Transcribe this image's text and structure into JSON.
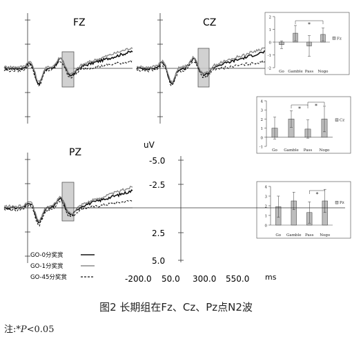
{
  "figure": {
    "caption": "图2   长期组在Fz、Cz、Pz点N2波",
    "note_prefix": "注:*",
    "note_p": "P",
    "note_suffix": "<0.05"
  },
  "chart_data": [
    {
      "type": "line",
      "title": "FZ",
      "x": [
        -200,
        550
      ],
      "series": [
        {
          "name": "GO-0分奖赏",
          "style": "solid-black"
        },
        {
          "name": "GO-1分奖赏",
          "style": "solid-gray"
        },
        {
          "name": "GO-45分奖赏",
          "style": "dashed"
        }
      ],
      "highlight_window": true
    },
    {
      "type": "line",
      "title": "CZ",
      "x": [
        -200,
        550
      ],
      "series": [
        {
          "name": "GO-0分奖赏",
          "style": "solid-black"
        },
        {
          "name": "GO-1分奖赏",
          "style": "solid-gray"
        },
        {
          "name": "GO-45分奖赏",
          "style": "dashed"
        }
      ],
      "highlight_window": true
    },
    {
      "type": "line",
      "title": "PZ",
      "x_label": "ms",
      "y_label": "uV",
      "x_ticks": [
        "-200.0",
        "50.0",
        "300.0",
        "550.0"
      ],
      "y_ticks": [
        "-5.0",
        "-2.5",
        "2.5",
        "5.0"
      ],
      "y_reversed": true,
      "series": [
        {
          "name": "GO-0分奖赏",
          "style": "solid-black"
        },
        {
          "name": "GO-1分奖赏",
          "style": "solid-gray"
        },
        {
          "name": "GO-45分奖赏",
          "style": "dashed"
        }
      ],
      "highlight_window": true
    },
    {
      "type": "bar",
      "legend": "Fz",
      "categories": [
        "Go",
        "Gamble",
        "Pass",
        "Nogo"
      ],
      "values": [
        -0.2,
        0.7,
        -0.3,
        0.6
      ],
      "errors": [
        0.3,
        0.6,
        0.8,
        0.5
      ],
      "ylim": [
        -2,
        2
      ],
      "y_ticks": [
        "2",
        "1",
        "0",
        "-1",
        "-2"
      ],
      "annotations": [
        {
          "text": "*",
          "between": [
            "Gamble",
            "Nogo"
          ]
        }
      ]
    },
    {
      "type": "bar",
      "legend": "Cz",
      "categories": [
        "Go",
        "Gamble",
        "Pass",
        "Nogo"
      ],
      "values": [
        1.0,
        2.0,
        0.9,
        2.0
      ],
      "errors": [
        1.2,
        0.9,
        1.0,
        1.4
      ],
      "ylim": [
        -1,
        4
      ],
      "y_ticks": [
        "4",
        "3",
        "2",
        "1",
        "0",
        "-1"
      ],
      "annotations": [
        {
          "text": "*",
          "between": [
            "Gamble",
            "Pass"
          ]
        },
        {
          "text": "*",
          "between": [
            "Pass",
            "Nogo"
          ]
        }
      ]
    },
    {
      "type": "bar",
      "legend": "Pz",
      "categories": [
        "Go",
        "Gamble",
        "Pass",
        "Nogo"
      ],
      "values": [
        1.9,
        2.5,
        1.3,
        2.5
      ],
      "errors": [
        1.1,
        0.9,
        1.1,
        1.2
      ],
      "ylim": [
        0,
        4
      ],
      "y_ticks": [
        "4",
        "3",
        "2",
        "1",
        "0"
      ],
      "annotations": [
        {
          "text": "*",
          "between": [
            "Pass",
            "Nogo"
          ]
        }
      ]
    }
  ]
}
